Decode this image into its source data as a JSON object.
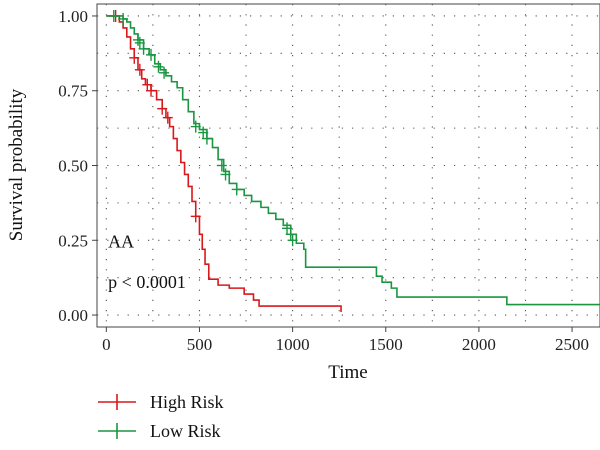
{
  "chart_data": {
    "type": "line",
    "subtype": "kaplan-meier",
    "xlabel": "Time",
    "ylabel": "Survival probability",
    "xlim": [
      -50,
      2650
    ],
    "ylim": [
      -0.04,
      1.04
    ],
    "x_ticks": [
      0,
      500,
      1000,
      1500,
      2000,
      2500
    ],
    "y_ticks": [
      0.0,
      0.25,
      0.5,
      0.75,
      1.0
    ],
    "x_tick_labels": [
      "0",
      "500",
      "1000",
      "1500",
      "2000",
      "2500"
    ],
    "y_tick_labels": [
      "0.00",
      "0.25",
      "0.50",
      "0.75",
      "1.00"
    ],
    "grid": "dotted",
    "legend_position": "bottom-left",
    "annotations": [
      {
        "text": "AA",
        "x": 10,
        "y": 0.225
      },
      {
        "text": "p < 0.0001",
        "x": 10,
        "y": 0.09
      }
    ],
    "series": [
      {
        "name": "High Risk",
        "color": "#d7191c",
        "step_points": [
          [
            0,
            1.0
          ],
          [
            60,
            1.0
          ],
          [
            70,
            0.98
          ],
          [
            90,
            0.96
          ],
          [
            110,
            0.93
          ],
          [
            130,
            0.89
          ],
          [
            150,
            0.86
          ],
          [
            170,
            0.82
          ],
          [
            190,
            0.79
          ],
          [
            210,
            0.77
          ],
          [
            240,
            0.75
          ],
          [
            270,
            0.72
          ],
          [
            300,
            0.69
          ],
          [
            320,
            0.66
          ],
          [
            340,
            0.63
          ],
          [
            360,
            0.59
          ],
          [
            380,
            0.55
          ],
          [
            400,
            0.51
          ],
          [
            420,
            0.47
          ],
          [
            440,
            0.43
          ],
          [
            460,
            0.38
          ],
          [
            480,
            0.33
          ],
          [
            500,
            0.27
          ],
          [
            515,
            0.22
          ],
          [
            530,
            0.17
          ],
          [
            550,
            0.12
          ],
          [
            600,
            0.1
          ],
          [
            660,
            0.09
          ],
          [
            740,
            0.07
          ],
          [
            790,
            0.05
          ],
          [
            820,
            0.03
          ],
          [
            1260,
            0.03
          ],
          [
            1260,
            0.01
          ]
        ],
        "censor_points": [
          [
            50,
            1.0
          ],
          [
            150,
            0.86
          ],
          [
            180,
            0.82
          ],
          [
            220,
            0.77
          ],
          [
            240,
            0.75
          ],
          [
            300,
            0.69
          ],
          [
            330,
            0.66
          ],
          [
            480,
            0.33
          ]
        ]
      },
      {
        "name": "Low Risk",
        "color": "#1a9641",
        "step_points": [
          [
            0,
            1.0
          ],
          [
            70,
            1.0
          ],
          [
            90,
            0.99
          ],
          [
            110,
            0.98
          ],
          [
            130,
            0.96
          ],
          [
            150,
            0.94
          ],
          [
            170,
            0.92
          ],
          [
            200,
            0.89
          ],
          [
            230,
            0.87
          ],
          [
            260,
            0.84
          ],
          [
            290,
            0.82
          ],
          [
            320,
            0.8
          ],
          [
            350,
            0.78
          ],
          [
            380,
            0.76
          ],
          [
            410,
            0.72
          ],
          [
            440,
            0.68
          ],
          [
            470,
            0.64
          ],
          [
            500,
            0.62
          ],
          [
            540,
            0.59
          ],
          [
            570,
            0.56
          ],
          [
            600,
            0.52
          ],
          [
            630,
            0.48
          ],
          [
            660,
            0.44
          ],
          [
            700,
            0.42
          ],
          [
            740,
            0.4
          ],
          [
            780,
            0.38
          ],
          [
            830,
            0.36
          ],
          [
            870,
            0.34
          ],
          [
            910,
            0.32
          ],
          [
            950,
            0.3
          ],
          [
            990,
            0.27
          ],
          [
            1020,
            0.24
          ],
          [
            1060,
            0.22
          ],
          [
            1070,
            0.16
          ],
          [
            1440,
            0.16
          ],
          [
            1450,
            0.13
          ],
          [
            1480,
            0.11
          ],
          [
            1530,
            0.09
          ],
          [
            1560,
            0.06
          ],
          [
            2140,
            0.06
          ],
          [
            2150,
            0.035
          ],
          [
            2650,
            0.035
          ]
        ],
        "censor_points": [
          [
            40,
            1.0
          ],
          [
            90,
            0.99
          ],
          [
            170,
            0.92
          ],
          [
            180,
            0.91
          ],
          [
            200,
            0.89
          ],
          [
            240,
            0.87
          ],
          [
            280,
            0.83
          ],
          [
            310,
            0.81
          ],
          [
            480,
            0.63
          ],
          [
            520,
            0.61
          ],
          [
            540,
            0.59
          ],
          [
            620,
            0.5
          ],
          [
            640,
            0.47
          ],
          [
            700,
            0.42
          ],
          [
            970,
            0.29
          ],
          [
            990,
            0.27
          ],
          [
            1000,
            0.25
          ]
        ]
      }
    ]
  }
}
